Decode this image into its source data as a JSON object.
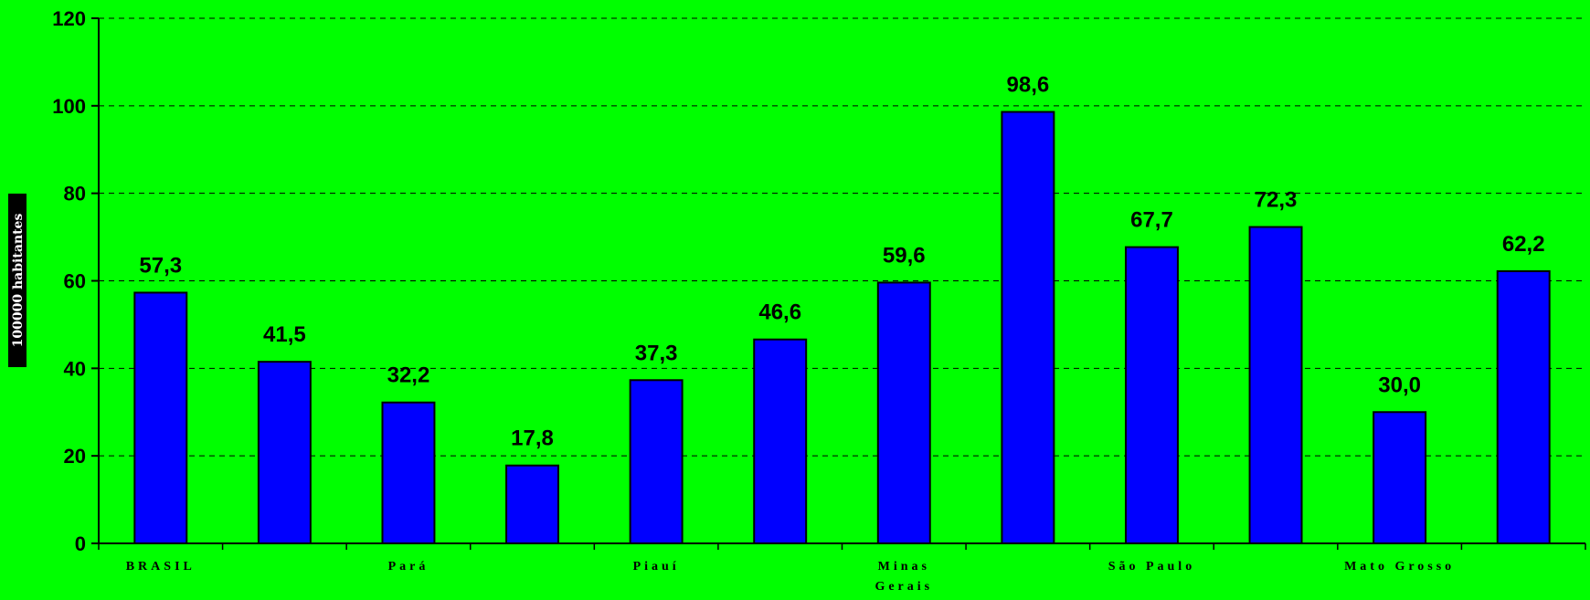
{
  "chart_data": {
    "type": "bar",
    "title": "",
    "xlabel": "",
    "ylabel": "100000 habitantes",
    "ylim": [
      0,
      120
    ],
    "yticks": [
      0,
      20,
      40,
      60,
      80,
      100,
      120
    ],
    "grid": true,
    "bar_color": "#0000ff",
    "background_color": "#00ff00",
    "categories": [
      "BRASIL",
      "",
      "Pará",
      "",
      "Piauí",
      "",
      "Minas Gerais",
      "",
      "São Paulo",
      "",
      "Mato Grosso",
      ""
    ],
    "category_label_lines": [
      [
        "BRASIL"
      ],
      [],
      [
        "Pará"
      ],
      [],
      [
        "Piauí"
      ],
      [],
      [
        "Minas",
        "Gerais"
      ],
      [],
      [
        "São Paulo"
      ],
      [],
      [
        "Mato Grosso"
      ],
      []
    ],
    "values": [
      57.3,
      41.5,
      32.2,
      17.8,
      37.3,
      46.6,
      59.6,
      98.6,
      67.7,
      72.3,
      30.0,
      62.2
    ],
    "value_labels": [
      "57,3",
      "41,5",
      "32,2",
      "17,8",
      "37,3",
      "46,6",
      "59,6",
      "98,6",
      "67,7",
      "72,3",
      "30,0",
      "62,2"
    ]
  }
}
